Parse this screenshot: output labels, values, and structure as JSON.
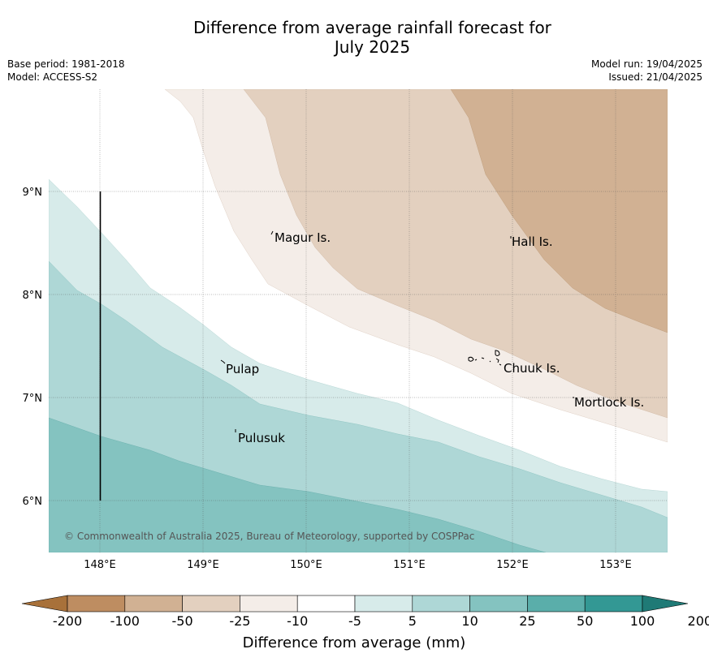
{
  "title_line1": "Difference from average rainfall forecast for",
  "title_line2": "July 2025",
  "meta": {
    "base_period": "Base period: 1981-2018",
    "model": "Model: ACCESS-S2",
    "model_run": "Model run: 19/04/2025",
    "issued": "Issued: 21/04/2025"
  },
  "map": {
    "lon_ticks": [
      "148°E",
      "149°E",
      "150°E",
      "151°E",
      "152°E",
      "153°E"
    ],
    "lat_ticks": [
      "9°N",
      "8°N",
      "7°N",
      "6°N"
    ],
    "places": [
      "Magur Is.",
      "Hall Is.",
      "Pulap",
      "Chuuk Is.",
      "Mortlock Is.",
      "Pulusuk"
    ],
    "copyright": "© Commonwealth of Australia 2025, Bureau of Meteorology, supported by COSPPac",
    "gridlines": true
  },
  "colorbar": {
    "labels": [
      "-200",
      "-100",
      "-50",
      "-25",
      "-10",
      "-5",
      "5",
      "10",
      "25",
      "50",
      "100",
      "200"
    ],
    "colors": [
      "#a8713a",
      "#be8d61",
      "#d1b193",
      "#e3d0bf",
      "#f4ede8",
      "#ffffff",
      "#d7ebea",
      "#aed7d6",
      "#84c3c0",
      "#5aaeaa",
      "#339894",
      "#1f7a76"
    ],
    "title": "Difference from average (mm)"
  }
}
